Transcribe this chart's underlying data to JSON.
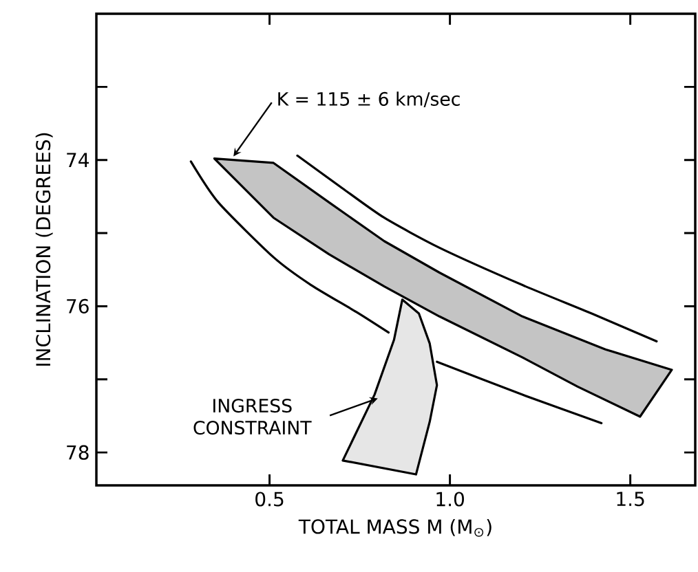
{
  "chart_data": {
    "type": "line",
    "xlabel": "TOTAL MASS M (M$_{⊙}$)",
    "ylabel": "INCLINATION (DEGREES)",
    "xlim": [
      0.02,
      1.68
    ],
    "ylim": [
      78.45,
      72.0
    ],
    "xticks": [
      0.5,
      {
        "value": 1.0,
        "label": "1.0"
      },
      1.5
    ],
    "yticks": [
      {
        "value": 73,
        "label": null
      },
      74,
      {
        "value": 75,
        "label": null
      },
      76,
      {
        "value": 77,
        "label": null
      },
      78
    ],
    "series": [
      {
        "type": "area",
        "color": "#c4c4c4",
        "x": [
          0.347,
          0.511,
          0.665,
          0.818,
          0.971,
          1.201,
          1.354,
          1.527,
          1.615,
          1.431,
          1.201,
          0.971,
          0.818,
          0.665,
          0.511
        ],
        "values": [
          73.98,
          74.79,
          75.29,
          75.73,
          76.14,
          76.7,
          77.1,
          77.51,
          76.87,
          76.59,
          76.14,
          75.54,
          75.11,
          74.58,
          74.04
        ]
      },
      {
        "color": "#000000",
        "x": [
          0.282,
          0.358,
          0.511,
          0.615,
          0.741,
          0.83,
          0.9,
          0.964,
          1.201,
          1.42
        ],
        "values": [
          74.02,
          74.58,
          75.33,
          75.71,
          76.08,
          76.36,
          null,
          76.76,
          77.21,
          77.6
        ]
      },
      {
        "color": "#000000",
        "x": [
          0.577,
          0.703,
          0.818,
          0.971,
          1.201,
          1.393,
          1.573
        ],
        "values": [
          73.94,
          74.39,
          74.79,
          75.2,
          75.71,
          76.1,
          76.48
        ]
      },
      {
        "type": "area",
        "color": "#e6e6e6",
        "x": [
          0.868,
          0.914,
          0.944,
          0.964,
          0.944,
          0.906,
          0.703,
          0.791,
          0.845
        ],
        "values": [
          75.91,
          76.1,
          76.51,
          77.08,
          77.58,
          78.3,
          78.11,
          77.21,
          76.46
        ]
      }
    ],
    "annotations": [
      {
        "text": "K = 115 ± 6 km/sec",
        "x": 0.4,
        "y": 73.95
      },
      {
        "text": "INGRESS CONSTRAINT",
        "x": 0.8,
        "y": 77.26
      }
    ]
  }
}
